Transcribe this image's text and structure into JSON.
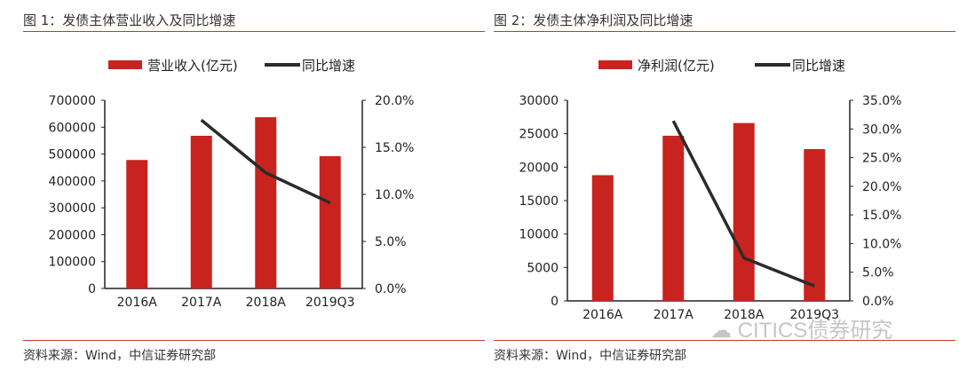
{
  "chart_data": [
    {
      "type": "bar+line",
      "title": "图 1：发债主体营业收入及同比增速",
      "categories": [
        "2016A",
        "2017A",
        "2018A",
        "2019Q3"
      ],
      "series": [
        {
          "name": "营业收入(亿元)",
          "type": "bar",
          "axis": "left",
          "values": [
            478000,
            568000,
            637000,
            492000
          ],
          "color": "#c8231f"
        },
        {
          "name": "同比增速",
          "type": "line",
          "axis": "right",
          "values": [
            null,
            17.9,
            12.3,
            9.1
          ],
          "color": "#2b2b2b"
        }
      ],
      "ylim": [
        0,
        700000
      ],
      "yticks": [
        "0",
        "100000",
        "200000",
        "300000",
        "400000",
        "500000",
        "600000",
        "700000"
      ],
      "y2lim": [
        0,
        20
      ],
      "y2ticks": [
        "0.0%",
        "5.0%",
        "10.0%",
        "15.0%",
        "20.0%"
      ],
      "legend": "top-center",
      "source": "资料来源：Wind，中信证券研究部"
    },
    {
      "type": "bar+line",
      "title": "图 2：发债主体净利润及同比增速",
      "categories": [
        "2016A",
        "2017A",
        "2018A",
        "2019Q3"
      ],
      "series": [
        {
          "name": "净利润(亿元)",
          "type": "bar",
          "axis": "left",
          "values": [
            18800,
            24700,
            26600,
            22700
          ],
          "color": "#c8231f"
        },
        {
          "name": "同比增速",
          "type": "line",
          "axis": "right",
          "values": [
            null,
            31.4,
            7.5,
            2.6
          ],
          "color": "#2b2b2b"
        }
      ],
      "ylim": [
        0,
        30000
      ],
      "yticks": [
        "0",
        "5000",
        "10000",
        "15000",
        "20000",
        "25000",
        "30000"
      ],
      "y2lim": [
        0,
        35
      ],
      "y2ticks": [
        "0.0%",
        "5.0%",
        "10.0%",
        "15.0%",
        "20.0%",
        "25.0%",
        "30.0%",
        "35.0%"
      ],
      "legend": "top-center",
      "source": "资料来源：Wind，中信证券研究部"
    }
  ],
  "watermark": "CITICS债券研究"
}
